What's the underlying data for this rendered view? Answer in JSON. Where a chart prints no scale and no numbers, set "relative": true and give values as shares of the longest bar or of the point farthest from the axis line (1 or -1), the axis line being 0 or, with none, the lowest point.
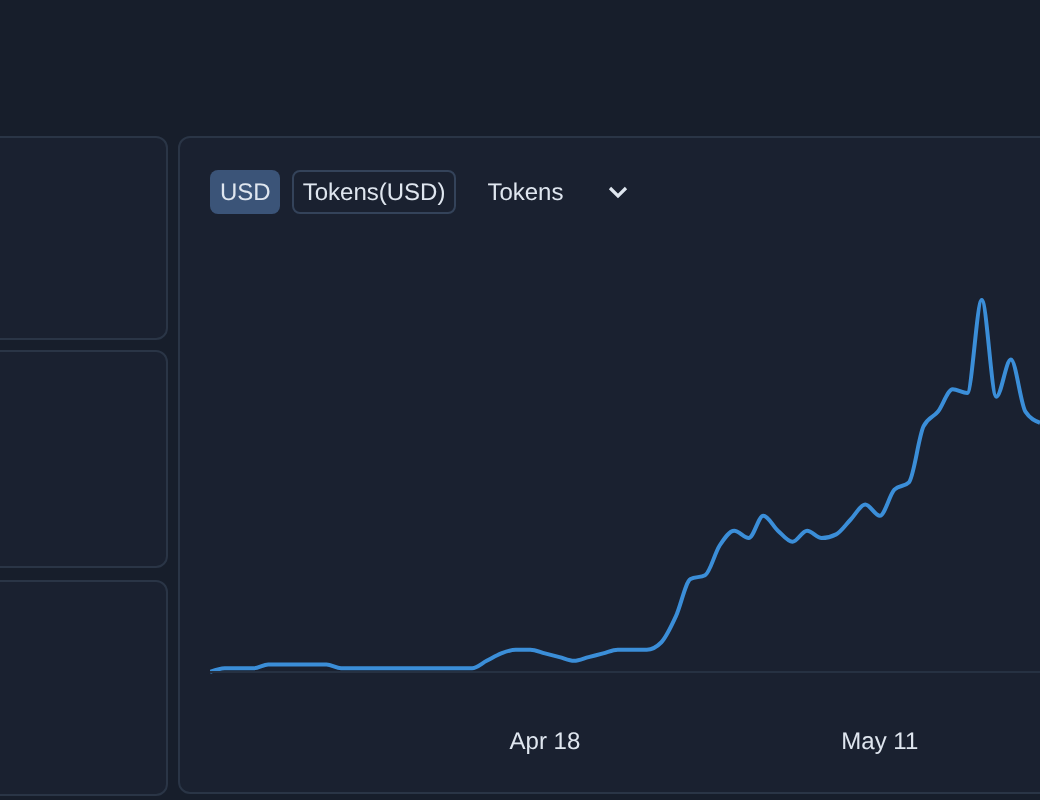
{
  "chart_data": {
    "type": "line",
    "relative": true,
    "annotations": [
      "USD",
      "Tokens(USD)",
      "Tokens"
    ],
    "x": [
      "--03-26",
      "--03-27",
      "--03-28",
      "--03-29",
      "--03-30",
      "--03-31",
      "--04-01",
      "--04-02",
      "--04-03",
      "--04-04",
      "--04-05",
      "--04-06",
      "--04-07",
      "--04-08",
      "--04-09",
      "--04-10",
      "--04-11",
      "--04-12",
      "--04-13",
      "--04-14",
      "--04-15",
      "--04-16",
      "--04-17",
      "--04-18",
      "--04-19",
      "--04-20",
      "--04-21",
      "--04-22",
      "--04-23",
      "--04-24",
      "--04-25",
      "--04-26",
      "--04-27",
      "--04-28",
      "--04-29",
      "--04-30",
      "--05-01",
      "--05-02",
      "--05-03",
      "--05-04",
      "--05-05",
      "--05-06",
      "--05-07",
      "--05-08",
      "--05-09",
      "--05-10",
      "--05-11",
      "--05-12",
      "--05-13",
      "--05-14",
      "--05-15",
      "--05-16",
      "--05-17",
      "--05-18",
      "--05-19",
      "--05-20",
      "--05-21",
      "--05-22"
    ],
    "series": [
      {
        "color": "#3b8ed8",
        "values": [
          0,
          0.01,
          0.01,
          0.01,
          0.02,
          0.02,
          0.02,
          0.02,
          0.02,
          0.01,
          0.01,
          0.01,
          0.01,
          0.01,
          0.01,
          0.01,
          0.01,
          0.01,
          0.01,
          0.03,
          0.05,
          0.06,
          0.06,
          0.05,
          0.04,
          0.03,
          0.04,
          0.05,
          0.06,
          0.06,
          0.06,
          0.08,
          0.15,
          0.25,
          0.26,
          0.34,
          0.38,
          0.36,
          0.42,
          0.38,
          0.35,
          0.38,
          0.36,
          0.37,
          0.41,
          0.45,
          0.42,
          0.49,
          0.51,
          0.66,
          0.7,
          0.76,
          0.75,
          1,
          0.74,
          0.84,
          0.7,
          0.67
        ]
      }
    ],
    "xlim": [
      "--03-26",
      "--05-22"
    ],
    "xticks": [
      {
        "value": "--04-18",
        "label": "Apr 18"
      },
      {
        "value": "--05-11",
        "label": "May 11"
      }
    ],
    "grid": false,
    "legend": false,
    "marker": "none",
    "line_style": "solid"
  }
}
